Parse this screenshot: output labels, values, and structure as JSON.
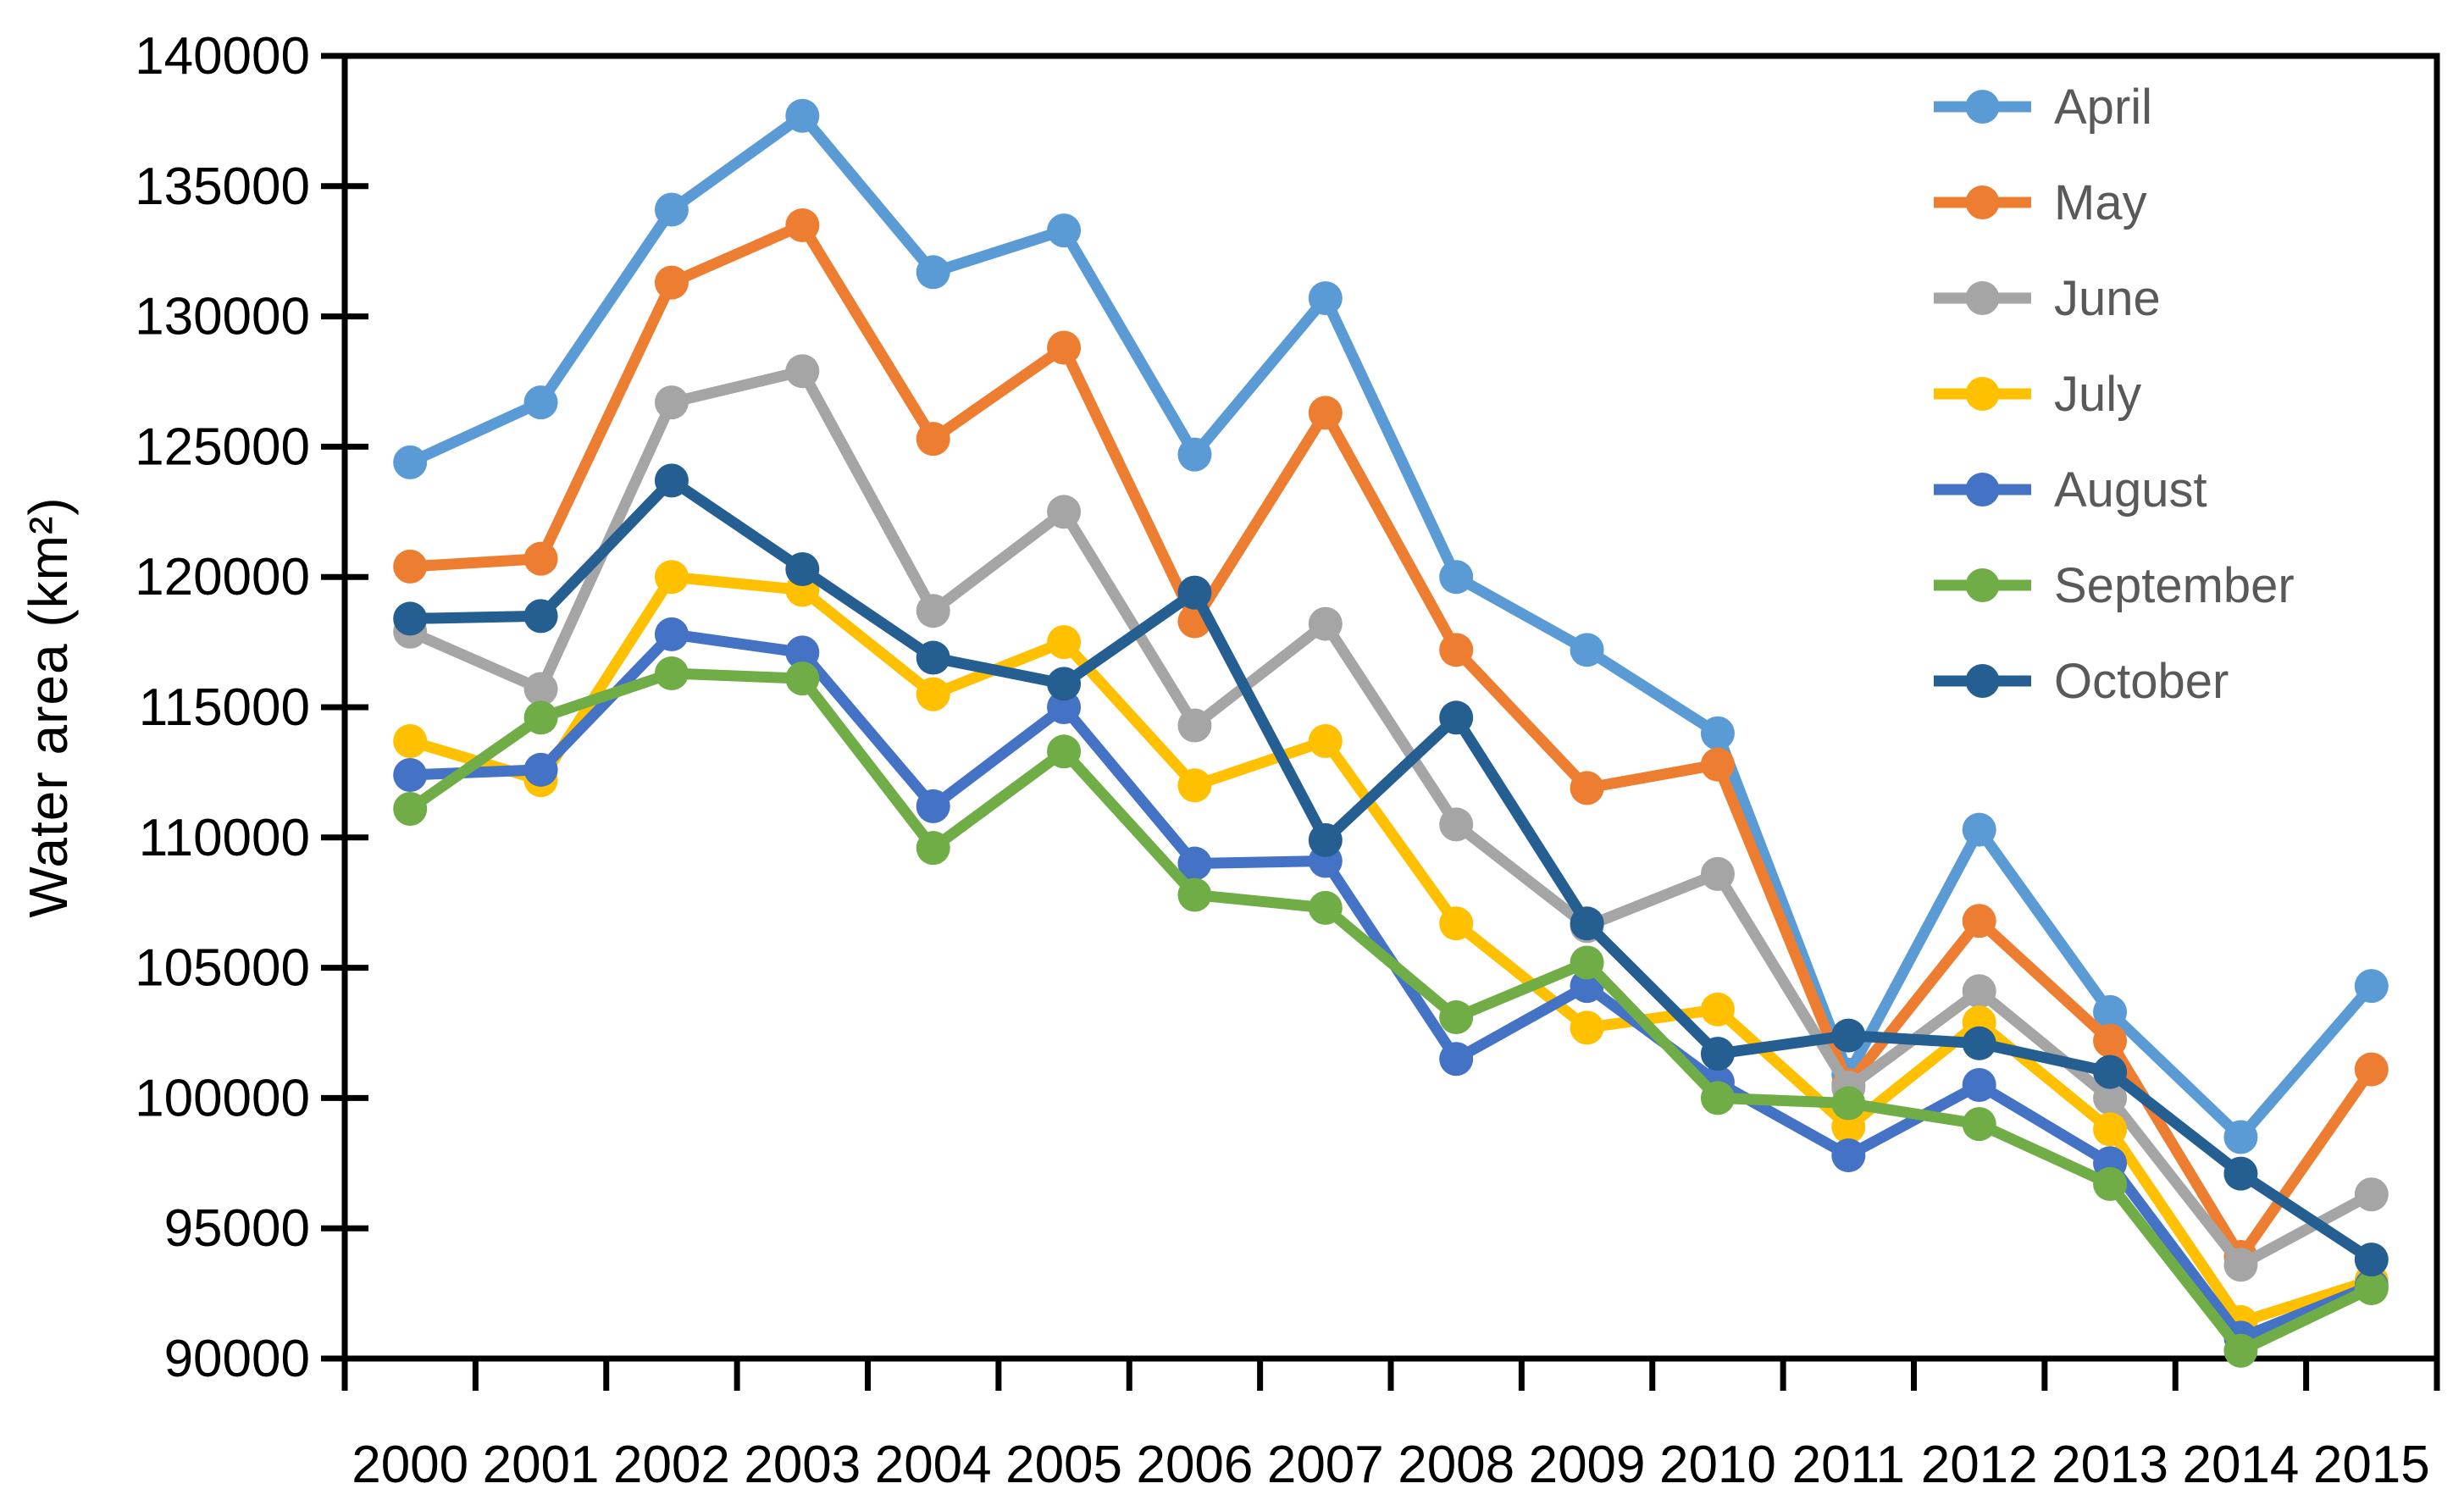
{
  "chart_data": {
    "type": "line",
    "title": "",
    "xlabel": "",
    "ylabel": "Water area (km²)",
    "categories": [
      "2000",
      "2001",
      "2002",
      "2003",
      "2004",
      "2005",
      "2006",
      "2007",
      "2008",
      "2009",
      "2010",
      "2011",
      "2012",
      "2013",
      "2014",
      "2015"
    ],
    "ylim": [
      90000,
      140000
    ],
    "ytick_step": 5000,
    "ytick_labels": [
      "90000",
      "95000",
      "100000",
      "105000",
      "110000",
      "115000",
      "120000",
      "125000",
      "130000",
      "135000",
      "140000"
    ],
    "grid": false,
    "legend_position": "top-right",
    "marker": "circle",
    "background": "#FFFFFF",
    "axis_color": "#000000",
    "tick_label_color": "#000000",
    "legend_text_color": "#595959",
    "series": [
      {
        "name": "April",
        "color": "#5B9BD5",
        "values": [
          124400,
          126700,
          134100,
          137700,
          131700,
          133300,
          124700,
          130700,
          120000,
          117200,
          114000,
          100900,
          110300,
          103300,
          98500,
          104300
        ]
      },
      {
        "name": "May",
        "color": "#ED7D31",
        "values": [
          120400,
          120700,
          131300,
          133500,
          125300,
          128800,
          118300,
          126300,
          117200,
          111900,
          112800,
          100500,
          106800,
          102200,
          93900,
          101100
        ]
      },
      {
        "name": "June",
        "color": "#A5A5A5",
        "values": [
          117900,
          115700,
          126700,
          127900,
          118700,
          122500,
          114300,
          118200,
          110500,
          106600,
          108600,
          100400,
          104100,
          100000,
          93600,
          96300
        ]
      },
      {
        "name": "July",
        "color": "#FFC000",
        "values": [
          113700,
          112200,
          120000,
          119500,
          115500,
          117500,
          112000,
          113700,
          106700,
          102700,
          103400,
          98900,
          102900,
          98800,
          91400,
          93000
        ]
      },
      {
        "name": "August",
        "color": "#4472C4",
        "values": [
          112400,
          112600,
          117800,
          117100,
          111200,
          115000,
          109000,
          109100,
          101500,
          104300,
          100600,
          97800,
          100500,
          97500,
          90800,
          92800
        ]
      },
      {
        "name": "September",
        "color": "#70AD47",
        "values": [
          111100,
          114600,
          116300,
          116100,
          109600,
          113300,
          107800,
          107300,
          103100,
          105200,
          100000,
          99800,
          99000,
          96700,
          90300,
          92700
        ]
      },
      {
        "name": "October",
        "color": "#255E91",
        "values": [
          118400,
          118500,
          123700,
          120300,
          116900,
          115900,
          119400,
          109900,
          114600,
          106700,
          101700,
          102400,
          102100,
          101000,
          97100,
          93800
        ]
      }
    ]
  }
}
